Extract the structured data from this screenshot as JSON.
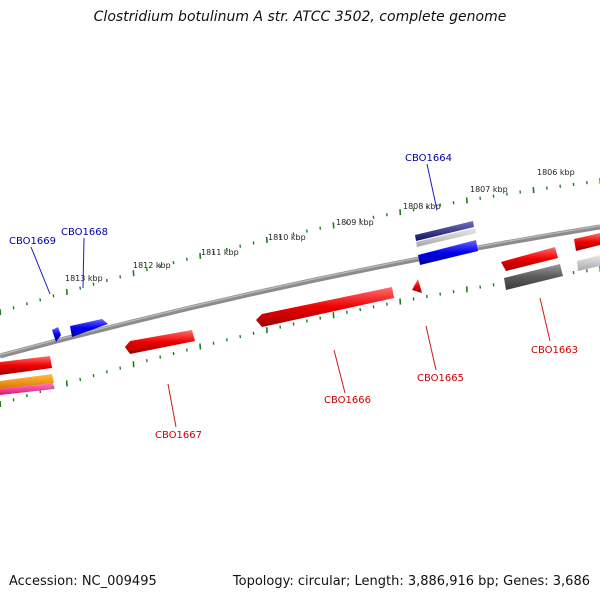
{
  "title": "Clostridium botulinum A str. ATCC 3502, complete genome",
  "footer": {
    "accession": "Accession: NC_009495",
    "summary": "Topology: circular; Length: 3,886,916 bp; Genes: 3,686"
  },
  "scale_labels": [
    "1806 kbp",
    "1807 kbp",
    "1808 kbp",
    "1809 kbp",
    "1810 kbp",
    "1811 kbp",
    "1812 kbp",
    "1813 kbp"
  ],
  "genes": {
    "forward": [
      "CBO1664",
      "CBO1668",
      "CBO1669"
    ],
    "reverse": [
      "CBO1663",
      "CBO1665",
      "CBO1666",
      "CBO1667"
    ]
  },
  "colors": {
    "backbone": "#7a7a7a",
    "forward_gene": "#0000ee",
    "reverse_gene": "#ee0000",
    "tick": "#1e7d1e",
    "label_forward": "#0000aa",
    "label_reverse": "#cc0000"
  }
}
